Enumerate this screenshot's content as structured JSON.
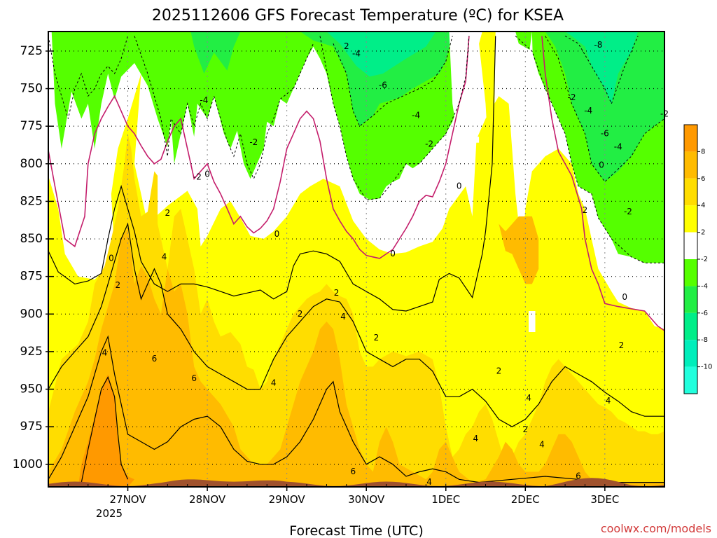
{
  "chart_data": {
    "type": "heatmap",
    "title": "2025112606 GFS Forecast Temperature (ºC) for KSEA",
    "xlabel": "Forecast Time (UTC)",
    "ylabel": "",
    "credit": "coolwx.com/models",
    "y_ticks": [
      "725",
      "750",
      "775",
      "800",
      "825",
      "850",
      "875",
      "900",
      "925",
      "950",
      "975",
      "1000"
    ],
    "y_values": [
      725,
      750,
      775,
      800,
      825,
      850,
      875,
      900,
      925,
      950,
      975,
      1000
    ],
    "ylim": [
      1015,
      712
    ],
    "x_ticks": [
      "27NOV",
      "28NOV",
      "29NOV",
      "30NOV",
      "1DEC",
      "2DEC",
      "3DEC"
    ],
    "x_values": [
      24,
      48,
      72,
      96,
      120,
      144,
      168
    ],
    "x_year": "2025",
    "xlim": [
      0,
      186
    ],
    "grid": true,
    "colorbar": {
      "labels": [
        "8",
        "6",
        "4",
        "2",
        "-2",
        "-4",
        "-6",
        "-8",
        "-10"
      ],
      "colors": [
        "#ff9900",
        "#ffbb00",
        "#ffdd00",
        "#ffff00",
        "#ffffff",
        "#55ff00",
        "#22ee44",
        "#00ee88",
        "#00eebb",
        "#22ffdd"
      ]
    },
    "contour_labels": [
      {
        "t": 90,
        "p": 722,
        "v": "2"
      },
      {
        "t": 93,
        "p": 727,
        "v": "-4"
      },
      {
        "t": 101,
        "p": 748,
        "v": "-6"
      },
      {
        "t": 111,
        "p": 768,
        "v": "-4"
      },
      {
        "t": 115,
        "p": 787,
        "v": "-2"
      },
      {
        "t": 124,
        "p": 815,
        "v": "0"
      },
      {
        "t": 104,
        "p": 860,
        "v": "0"
      },
      {
        "t": 87,
        "p": 886,
        "v": "2"
      },
      {
        "t": 89,
        "p": 902,
        "v": "4"
      },
      {
        "t": 99,
        "p": 916,
        "v": "2"
      },
      {
        "t": 76,
        "p": 900,
        "v": "2"
      },
      {
        "t": 69,
        "p": 847,
        "v": "0"
      },
      {
        "t": 47,
        "p": 758,
        "v": "-4"
      },
      {
        "t": 62,
        "p": 786,
        "v": "-2"
      },
      {
        "t": 45,
        "p": 809,
        "v": "-2"
      },
      {
        "t": 48,
        "p": 807,
        "v": "0"
      },
      {
        "t": 36,
        "p": 833,
        "v": "2"
      },
      {
        "t": 35,
        "p": 862,
        "v": "4"
      },
      {
        "t": 19,
        "p": 863,
        "v": "0"
      },
      {
        "t": 21,
        "p": 881,
        "v": "2"
      },
      {
        "t": 17,
        "p": 926,
        "v": "4"
      },
      {
        "t": 32,
        "p": 930,
        "v": "6"
      },
      {
        "t": 44,
        "p": 943,
        "v": "6"
      },
      {
        "t": 68,
        "p": 946,
        "v": "4"
      },
      {
        "t": 92,
        "p": 1005,
        "v": "6"
      },
      {
        "t": 115,
        "p": 1012,
        "v": "4"
      },
      {
        "t": 129,
        "p": 983,
        "v": "4"
      },
      {
        "t": 144,
        "p": 977,
        "v": "2"
      },
      {
        "t": 136,
        "p": 938,
        "v": "2"
      },
      {
        "t": 149,
        "p": 987,
        "v": "4"
      },
      {
        "t": 145,
        "p": 956,
        "v": "4"
      },
      {
        "t": 162,
        "p": 831,
        "v": "2"
      },
      {
        "t": 158,
        "p": 756,
        "v": "-2"
      },
      {
        "t": 163,
        "p": 765,
        "v": "-4"
      },
      {
        "t": 168,
        "p": 780,
        "v": "-6"
      },
      {
        "t": 172,
        "p": 789,
        "v": "-4"
      },
      {
        "t": 166,
        "p": 721,
        "v": "-8"
      },
      {
        "t": 175,
        "p": 832,
        "v": "-2"
      },
      {
        "t": 167,
        "p": 801,
        "v": "0"
      },
      {
        "t": 174,
        "p": 889,
        "v": "0"
      },
      {
        "t": 173,
        "p": 921,
        "v": "2"
      },
      {
        "t": 169,
        "p": 958,
        "v": "4"
      },
      {
        "t": 160,
        "p": 1008,
        "v": "6"
      },
      {
        "t": 186,
        "p": 767,
        "v": "-2"
      }
    ]
  }
}
